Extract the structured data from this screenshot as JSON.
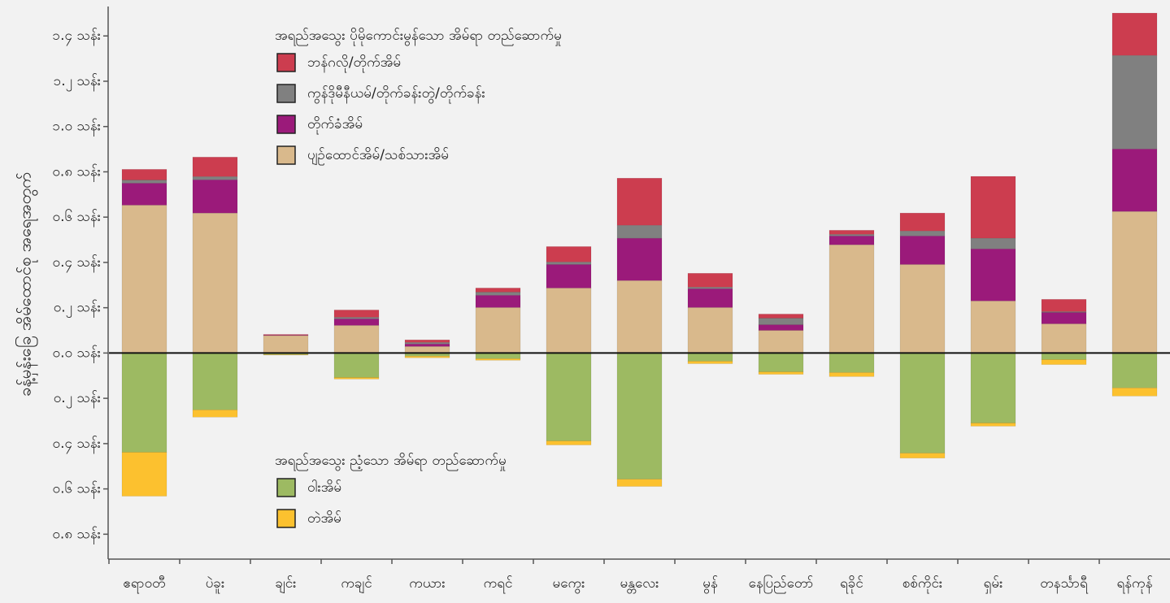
{
  "chart_data": {
    "type": "bar",
    "stacked": true,
    "y_label": "ခန့်မှန်းခြေ အိမ်ထောင်စု အရေအတွက်",
    "legend_titles": [
      "အရည်အသွေး ပိုမိုကောင်းမွန်သော အိမ်ရာ တည်ဆောက်မှု",
      "အရည်အသွေး ညံ့သော အိမ်ရာ တည်ဆောက်မှု"
    ],
    "categories": [
      "ဧရာဝတီ",
      "ပဲခူး",
      "ချင်း",
      "ကချင်",
      "ကယား",
      "ကရင်",
      "မကွေး",
      "မန္တလေး",
      "မွန်",
      "နေပြည်တော်",
      "ရခိုင်",
      "စစ်ကိုင်း",
      "ရှမ်း",
      "တနင်္သာရီ",
      "ရန်ကုန်"
    ],
    "series": [
      {
        "name": "ပျဉ်ထောင်အိမ်/သစ်သားအိမ်",
        "color": "#d9b98c",
        "values": [
          0.653,
          0.618,
          0.077,
          0.122,
          0.029,
          0.201,
          0.287,
          0.32,
          0.201,
          0.1,
          0.478,
          0.391,
          0.23,
          0.129,
          0.625
        ]
      },
      {
        "name": "တိုက်ခံအိမ်",
        "color": "#9b1a7a",
        "values": [
          0.097,
          0.147,
          0.002,
          0.029,
          0.011,
          0.054,
          0.104,
          0.187,
          0.083,
          0.025,
          0.039,
          0.126,
          0.23,
          0.05,
          0.276
        ]
      },
      {
        "name": "ကွန်ဒိုမီနီယမ်/တိုက်ခန်းတွဲ/တိုက်ခန်း",
        "color": "#808080",
        "values": [
          0.014,
          0.014,
          0,
          0.007,
          0.007,
          0.014,
          0.011,
          0.057,
          0.007,
          0.029,
          0.007,
          0.022,
          0.047,
          0.004,
          0.413
        ]
      },
      {
        "name": "ဘန်ဂလို/တိုက်အိမ်",
        "color": "#cc3d4f",
        "values": [
          0.047,
          0.086,
          0.003,
          0.032,
          0.011,
          0.018,
          0.068,
          0.208,
          0.061,
          0.018,
          0.018,
          0.079,
          0.273,
          0.054,
          0.187
        ]
      },
      {
        "name": "ဝါးအိမ်",
        "color": "#9dba62",
        "values": [
          -0.438,
          -0.251,
          -0.007,
          -0.108,
          -0.014,
          -0.025,
          -0.388,
          -0.557,
          -0.036,
          -0.083,
          -0.086,
          -0.442,
          -0.309,
          -0.029,
          -0.154
        ]
      },
      {
        "name": "တဲအိမ်",
        "color": "#fcc12f",
        "values": [
          -0.194,
          -0.032,
          -0.002,
          -0.007,
          -0.007,
          -0.007,
          -0.018,
          -0.032,
          -0.011,
          -0.011,
          -0.018,
          -0.022,
          -0.014,
          -0.022,
          -0.036
        ]
      }
    ],
    "ylim": [
      -0.91,
      1.53
    ],
    "yticks": [
      {
        "value": 1.4,
        "label": "၁.၄ သန်း"
      },
      {
        "value": 1.2,
        "label": "၁.၂ သန်း"
      },
      {
        "value": 1.0,
        "label": "၁.၀ သန်း"
      },
      {
        "value": 0.8,
        "label": "၀.၈ သန်း"
      },
      {
        "value": 0.6,
        "label": "၀.၆ သန်း"
      },
      {
        "value": 0.4,
        "label": "၀.၄ သန်း"
      },
      {
        "value": 0.2,
        "label": "၀.၂ သန်း"
      },
      {
        "value": 0,
        "label": "၀.၀ သန်း"
      },
      {
        "value": -0.2,
        "label": "၀.၂ သန်း"
      },
      {
        "value": -0.4,
        "label": "၀.၄ သန်း"
      },
      {
        "value": -0.6,
        "label": "၀.၆ သန်း"
      },
      {
        "value": -0.8,
        "label": "၀.၈ သန်း"
      }
    ]
  }
}
